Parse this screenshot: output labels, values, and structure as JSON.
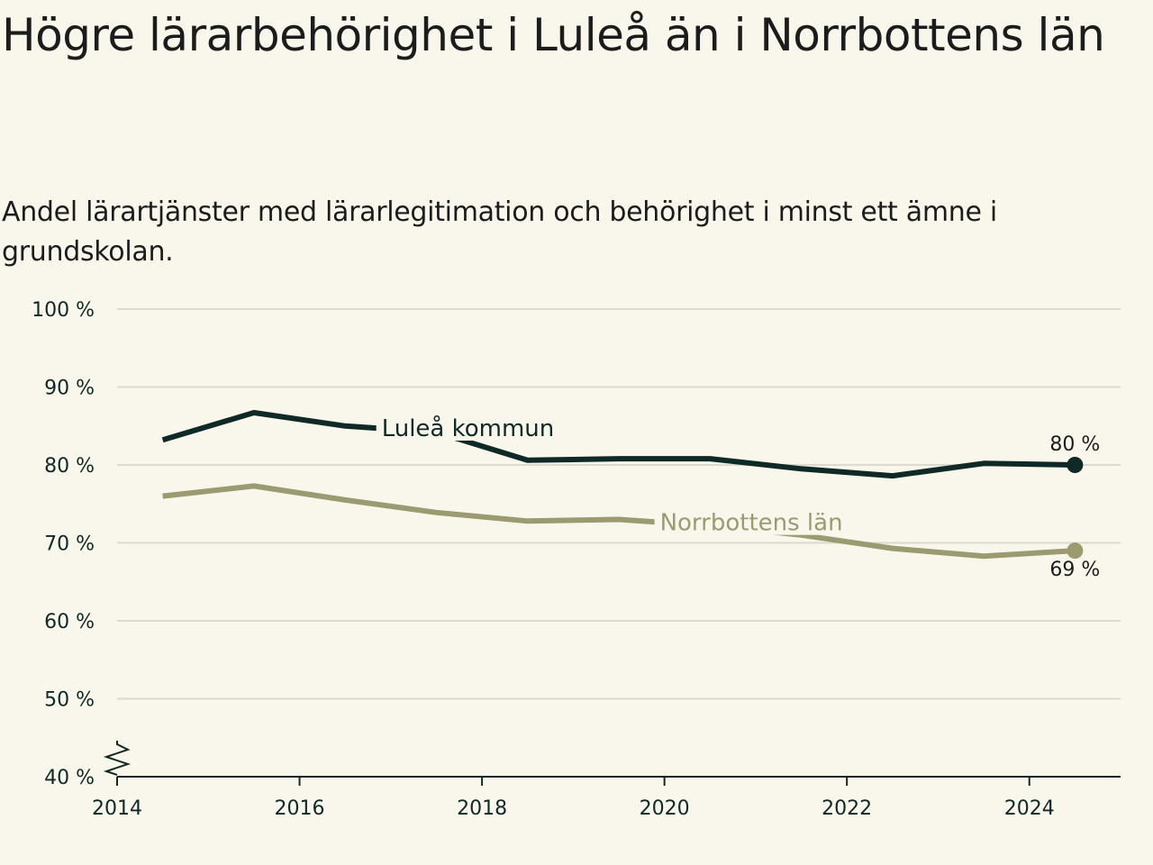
{
  "chart_data": {
    "type": "line",
    "title": "Högre lärarbehörighet i Luleå än i Norrbottens län",
    "subtitle": "Andel lärartjänster med lärarlegitimation och behörighet i minst ett ämne i grundskolan.",
    "x": [
      2014.5,
      2015.5,
      2016.5,
      2017.5,
      2018.5,
      2019.5,
      2020.5,
      2021.5,
      2022.5,
      2023.5,
      2024.5
    ],
    "xlim": [
      2014,
      2025
    ],
    "ylim": [
      40,
      100
    ],
    "x_ticks": [
      2014,
      2016,
      2018,
      2020,
      2022,
      2024
    ],
    "x_tick_labels": [
      "2014",
      "2016",
      "2018",
      "2020",
      "2022",
      "2024"
    ],
    "y_ticks": [
      40,
      50,
      60,
      70,
      80,
      90,
      100
    ],
    "y_tick_labels": [
      "40 %",
      "50 %",
      "60 %",
      "70 %",
      "80 %",
      "90 %",
      "100 %"
    ],
    "grid": true,
    "axis_break": true,
    "series": [
      {
        "name": "Luleå kommun",
        "color": "#0f2a26",
        "values": [
          83.2,
          86.7,
          85.0,
          84.2,
          80.6,
          80.8,
          80.8,
          79.5,
          78.6,
          80.2,
          80.0
        ],
        "end_label": "80 %",
        "label_anchor": [
          2016.9,
          83.7
        ]
      },
      {
        "name": "Norrbottens län",
        "color": "#9c9a70",
        "values": [
          76.0,
          77.3,
          75.5,
          73.9,
          72.8,
          73.0,
          72.2,
          71.0,
          69.3,
          68.3,
          69.0
        ],
        "end_label": "69 %",
        "label_anchor": [
          2019.95,
          71.6
        ]
      }
    ]
  }
}
